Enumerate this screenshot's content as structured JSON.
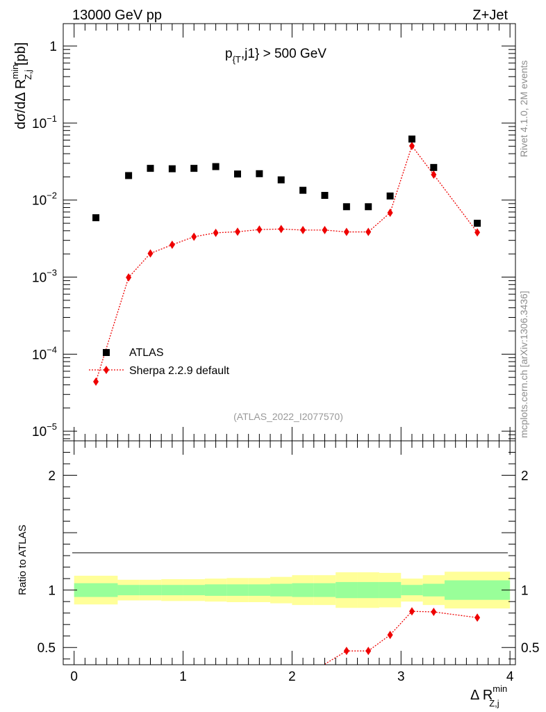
{
  "header": {
    "energy_label": "13000 GeV pp",
    "process_label": "Z+Jet"
  },
  "side_labels": {
    "rivet": "Rivet 4.1.0,  2M events",
    "mcplots": "mcplots.cern.ch [arXiv:1306.3436]"
  },
  "colors": {
    "data": "#000000",
    "mc": "#ee0000",
    "band_inner": "#99ff99",
    "band_outer": "#ffff99",
    "watermark": "#999999"
  },
  "chart_data": [
    {
      "type": "scatter",
      "panel": "main",
      "title": "p_{T},j1} > 500 GeV",
      "title_parts": {
        "p": "p",
        "sub": "{T",
        "rest": ",j1} > 500 GeV"
      },
      "ylabel_parts": {
        "main": "dσ/dΔ R",
        "sup": "min",
        "sub": "Z,j",
        "unit": "[pb]"
      },
      "yscale": "log",
      "ylim": [
        7.5e-06,
        1.95
      ],
      "xlim": [
        -0.1,
        4.05
      ],
      "y_tick_labels": [
        {
          "base": "10",
          "exp": "−5",
          "value": 1e-05
        },
        {
          "base": "10",
          "exp": "−4",
          "value": 0.0001
        },
        {
          "base": "10",
          "exp": "−3",
          "value": 0.001
        },
        {
          "base": "10",
          "exp": "−2",
          "value": 0.01
        },
        {
          "base": "10",
          "exp": "−1",
          "value": 0.1
        },
        {
          "base": "1",
          "exp": "",
          "value": 1
        }
      ],
      "watermark": "(ATLAS_2022_I2077570)",
      "legend": {
        "position": "lower-left",
        "entries": [
          "ATLAS",
          "Sherpa 2.2.9 default"
        ]
      },
      "series": [
        {
          "name": "ATLAS",
          "marker": "square",
          "x": [
            0.2,
            0.5,
            0.7,
            0.9,
            1.1,
            1.3,
            1.5,
            1.7,
            1.9,
            2.1,
            2.3,
            2.5,
            2.7,
            2.9,
            3.1,
            3.3,
            3.7
          ],
          "values": [
            0.0059,
            0.0208,
            0.0258,
            0.0255,
            0.0258,
            0.0272,
            0.0218,
            0.022,
            0.0183,
            0.0134,
            0.0115,
            0.0082,
            0.0082,
            0.0113,
            0.062,
            0.0265,
            0.005
          ]
        },
        {
          "name": "Sherpa 2.2.9 default",
          "marker": "diamond",
          "line": "dotted",
          "x": [
            0.2,
            0.5,
            0.7,
            0.9,
            1.1,
            1.3,
            1.5,
            1.7,
            1.9,
            2.1,
            2.3,
            2.5,
            2.7,
            2.9,
            3.1,
            3.3,
            3.7
          ],
          "values": [
            4.4e-05,
            0.00099,
            0.00203,
            0.00263,
            0.00334,
            0.00376,
            0.00388,
            0.00414,
            0.00421,
            0.00408,
            0.00408,
            0.00386,
            0.00386,
            0.00685,
            0.0505,
            0.0214,
            0.0038
          ]
        }
      ]
    },
    {
      "type": "line",
      "panel": "ratio",
      "ylabel": "Ratio to ATLAS",
      "xlabel_parts": {
        "main": "Δ R",
        "sup": "min",
        "sub": "Z,j"
      },
      "xlim": [
        -0.1,
        4.05
      ],
      "ylim": [
        0.35,
        2.3
      ],
      "x_tick_labels": [
        "0",
        "1",
        "2",
        "3",
        "4"
      ],
      "y_tick_labels": [
        "0.5",
        "1",
        "2"
      ],
      "bins": [
        0.0,
        0.4,
        0.6,
        0.8,
        1.0,
        1.2,
        1.4,
        1.6,
        1.8,
        2.0,
        2.2,
        2.4,
        2.6,
        2.8,
        3.0,
        3.2,
        3.4,
        4.0
      ],
      "band_inner": {
        "low": [
          0.94,
          0.955,
          0.955,
          0.955,
          0.955,
          0.95,
          0.95,
          0.95,
          0.945,
          0.94,
          0.94,
          0.93,
          0.93,
          0.93,
          0.955,
          0.945,
          0.915
        ],
        "high": [
          1.06,
          1.045,
          1.045,
          1.045,
          1.045,
          1.05,
          1.05,
          1.05,
          1.055,
          1.06,
          1.06,
          1.07,
          1.07,
          1.07,
          1.045,
          1.055,
          1.085
        ]
      },
      "band_outer": {
        "low": [
          0.875,
          0.91,
          0.91,
          0.905,
          0.905,
          0.9,
          0.895,
          0.895,
          0.885,
          0.87,
          0.87,
          0.845,
          0.845,
          0.85,
          0.9,
          0.87,
          0.84
        ],
        "high": [
          1.125,
          1.09,
          1.09,
          1.095,
          1.095,
          1.1,
          1.105,
          1.105,
          1.115,
          1.13,
          1.13,
          1.155,
          1.155,
          1.15,
          1.1,
          1.13,
          1.16
        ]
      },
      "series": [
        {
          "name": "Sherpa 2.2.9 default",
          "marker": "diamond",
          "line": "dotted",
          "x": [
            2.3,
            2.5,
            2.7,
            2.9,
            3.1,
            3.3,
            3.7
          ],
          "values": [
            0.355,
            0.47,
            0.47,
            0.61,
            0.815,
            0.81,
            0.76
          ]
        }
      ]
    }
  ]
}
